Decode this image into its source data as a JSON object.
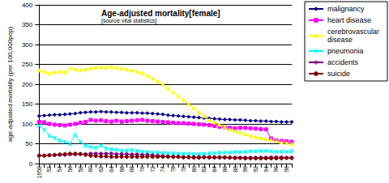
{
  "chart_data": {
    "type": "line",
    "title": "Age-adjusted mortality[female]",
    "subtitle": "[source:vital statistics]",
    "y_label": "age-adjusted mortality (per 100,000pop)",
    "categories": [
      "1950",
      null,
      "52",
      null,
      "54",
      null,
      "56",
      null,
      "58",
      null,
      "60",
      null,
      "62",
      null,
      "64",
      null,
      "66",
      null,
      "68",
      null,
      "70",
      null,
      "72",
      null,
      "74",
      null,
      "76",
      null,
      "78",
      null,
      "80",
      null,
      "82",
      null,
      "84",
      null,
      "86",
      null,
      "88",
      null,
      "90",
      null,
      "92",
      null,
      "94",
      null,
      "96",
      null,
      "98",
      null
    ],
    "ylim": [
      0,
      400
    ],
    "yticks": [
      0,
      50,
      100,
      150,
      200,
      250,
      300,
      350,
      400
    ],
    "grid": true,
    "legend": "right",
    "series": [
      {
        "name": "malignancy",
        "color": "#000080",
        "marker": "diamond",
        "values": [
          120,
          121,
          122,
          123,
          123,
          124,
          125,
          126,
          128,
          129,
          130,
          130,
          131,
          130,
          130,
          129,
          129,
          128,
          128,
          128,
          127,
          127,
          126,
          125,
          124,
          122,
          121,
          120,
          119,
          118,
          117,
          116,
          115,
          114,
          113,
          112,
          111,
          111,
          110,
          110,
          109,
          108,
          108,
          107,
          107,
          106,
          106,
          105,
          105,
          105
        ]
      },
      {
        "name": "heart disease",
        "color": "#ff00ff",
        "marker": "square",
        "values": [
          105,
          104,
          100,
          98,
          97,
          96,
          98,
          100,
          103,
          105,
          110,
          108,
          109,
          107,
          106,
          108,
          106,
          107,
          108,
          109,
          110,
          108,
          107,
          106,
          105,
          104,
          103,
          102,
          102,
          101,
          100,
          99,
          98,
          97,
          95,
          93,
          91,
          90,
          89,
          90,
          90,
          89,
          88,
          87,
          86,
          63,
          58,
          57,
          56,
          55
        ]
      },
      {
        "name": "cerebrovascular disease",
        "color": "#ffff00",
        "marker": "triangle",
        "values": [
          235,
          232,
          228,
          230,
          232,
          230,
          240,
          238,
          235,
          238,
          240,
          242,
          243,
          242,
          244,
          242,
          240,
          238,
          235,
          232,
          228,
          222,
          215,
          208,
          200,
          190,
          180,
          170,
          160,
          150,
          140,
          130,
          120,
          110,
          104,
          98,
          92,
          86,
          82,
          78,
          74,
          70,
          67,
          64,
          62,
          60,
          57,
          54,
          52,
          50
        ]
      },
      {
        "name": "pneumonia",
        "color": "#00ffff",
        "marker": "x",
        "values": [
          95,
          85,
          70,
          65,
          58,
          55,
          50,
          72,
          55,
          45,
          42,
          40,
          45,
          38,
          36,
          35,
          32,
          33,
          34,
          32,
          30,
          29,
          28,
          28,
          27,
          26,
          26,
          25,
          25,
          25,
          24,
          24,
          25,
          26,
          26,
          27,
          28,
          28,
          29,
          29,
          30,
          31,
          31,
          32,
          32,
          31,
          30,
          30,
          30,
          31
        ]
      },
      {
        "name": "accidents",
        "color": "#800080",
        "marker": "star",
        "values": [
          20,
          20,
          21,
          21,
          22,
          22,
          23,
          23,
          24,
          24,
          25,
          25,
          25,
          25,
          25,
          24,
          24,
          24,
          23,
          23,
          22,
          22,
          21,
          20,
          19,
          18,
          17,
          17,
          16,
          16,
          16,
          16,
          16,
          15,
          15,
          15,
          15,
          15,
          15,
          15,
          15,
          15,
          15,
          15,
          15,
          16,
          16,
          16,
          15,
          15
        ]
      },
      {
        "name": "suicide",
        "color": "#800000",
        "marker": "circle",
        "values": [
          20,
          20,
          21,
          22,
          23,
          24,
          25,
          25,
          24,
          22,
          20,
          19,
          18,
          18,
          17,
          17,
          17,
          17,
          17,
          17,
          17,
          17,
          17,
          17,
          17,
          17,
          17,
          17,
          16,
          16,
          15,
          15,
          16,
          16,
          16,
          16,
          16,
          15,
          14,
          14,
          13,
          13,
          13,
          13,
          13,
          13,
          13,
          13,
          14,
          14
        ]
      }
    ]
  }
}
